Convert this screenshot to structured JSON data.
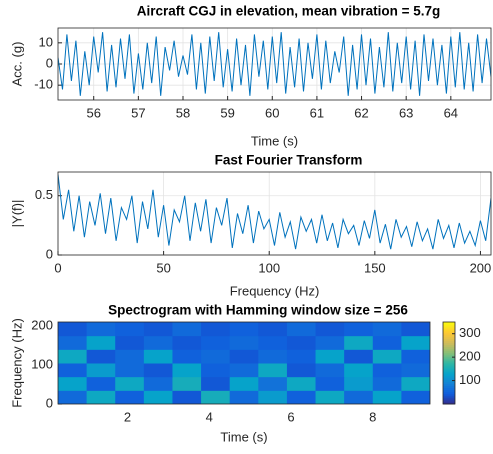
{
  "chart_data": [
    {
      "type": "line",
      "title": "Aircraft CGJ in elevation, mean vibration = 5.7g",
      "xlabel": "Time (s)",
      "ylabel": "Acc. (g)",
      "xlim": [
        55.2,
        64.9
      ],
      "ylim": [
        -17,
        17
      ],
      "xticks": [
        56,
        57,
        58,
        59,
        60,
        61,
        62,
        63,
        64
      ],
      "yticks": [
        -10,
        0,
        10
      ],
      "grid": true,
      "series": [
        {
          "color": "#0072bd",
          "x": [
            55.2,
            55.3,
            55.4,
            55.5,
            55.6,
            55.7,
            55.8,
            55.9,
            56.0,
            56.1,
            56.2,
            56.3,
            56.4,
            56.5,
            56.6,
            56.7,
            56.8,
            56.9,
            57.0,
            57.1,
            57.2,
            57.3,
            57.4,
            57.5,
            57.6,
            57.7,
            57.8,
            57.9,
            58.0,
            58.1,
            58.2,
            58.3,
            58.4,
            58.5,
            58.6,
            58.7,
            58.8,
            58.9,
            59.0,
            59.1,
            59.2,
            59.3,
            59.4,
            59.5,
            59.6,
            59.7,
            59.8,
            59.9,
            60.0,
            60.1,
            60.2,
            60.3,
            60.4,
            60.5,
            60.6,
            60.7,
            60.8,
            60.9,
            61.0,
            61.1,
            61.2,
            61.3,
            61.4,
            61.5,
            61.6,
            61.7,
            61.8,
            61.9,
            62.0,
            62.1,
            62.2,
            62.3,
            62.4,
            62.5,
            62.6,
            62.7,
            62.8,
            62.9,
            63.0,
            63.1,
            63.2,
            63.3,
            63.4,
            63.5,
            63.6,
            63.7,
            63.8,
            63.9,
            64.0,
            64.1,
            64.2,
            64.3,
            64.4,
            64.5,
            64.6,
            64.7,
            64.8,
            64.9
          ],
          "values": [
            3,
            -12,
            14,
            -8,
            11,
            -15,
            6,
            -10,
            13,
            -4,
            15,
            -13,
            9,
            -11,
            12,
            -7,
            14,
            -14,
            5,
            -12,
            10,
            -9,
            13,
            -15,
            8,
            -3,
            11,
            -6,
            4,
            -5,
            14,
            -12,
            10,
            -14,
            13,
            -8,
            15,
            -11,
            7,
            -13,
            12,
            -10,
            9,
            -15,
            14,
            -6,
            11,
            -12,
            13,
            -9,
            15,
            -14,
            8,
            -11,
            12,
            -13,
            10,
            -7,
            14,
            -12,
            11,
            -9,
            6,
            -4,
            13,
            -15,
            9,
            -12,
            14,
            -10,
            12,
            -14,
            8,
            -11,
            15,
            -13,
            10,
            -9,
            13,
            -12,
            11,
            -15,
            14,
            -8,
            12,
            -10,
            9,
            -14,
            13,
            -11,
            15,
            -12,
            10,
            -13,
            14,
            -9,
            12,
            -6
          ]
        }
      ]
    },
    {
      "type": "line",
      "title": "Fast Fourier Transform",
      "xlabel": "Frequency (Hz)",
      "ylabel": "|Y(f)|",
      "xlim": [
        0,
        205
      ],
      "ylim": [
        0,
        0.7
      ],
      "xticks": [
        0,
        50,
        100,
        150,
        200
      ],
      "yticks": [
        0,
        0.5
      ],
      "grid": true,
      "series": [
        {
          "color": "#0072bd",
          "x": [
            0,
            2.5,
            5,
            7.5,
            10,
            12.5,
            15,
            17.5,
            20,
            22.5,
            25,
            27.5,
            30,
            32.5,
            35,
            37.5,
            40,
            42.5,
            45,
            47.5,
            50,
            52.5,
            55,
            57.5,
            60,
            62.5,
            65,
            67.5,
            70,
            72.5,
            75,
            77.5,
            80,
            82.5,
            85,
            87.5,
            90,
            92.5,
            95,
            97.5,
            100,
            102.5,
            105,
            107.5,
            110,
            112.5,
            115,
            117.5,
            120,
            122.5,
            125,
            127.5,
            130,
            132.5,
            135,
            137.5,
            140,
            142.5,
            145,
            147.5,
            150,
            152.5,
            155,
            157.5,
            160,
            162.5,
            165,
            167.5,
            170,
            172.5,
            175,
            177.5,
            180,
            182.5,
            185,
            187.5,
            190,
            192.5,
            195,
            197.5,
            200,
            202.5,
            205
          ],
          "values": [
            0.68,
            0.3,
            0.55,
            0.2,
            0.5,
            0.15,
            0.45,
            0.25,
            0.52,
            0.18,
            0.48,
            0.12,
            0.4,
            0.3,
            0.5,
            0.1,
            0.45,
            0.22,
            0.55,
            0.15,
            0.42,
            0.08,
            0.38,
            0.28,
            0.5,
            0.12,
            0.44,
            0.2,
            0.47,
            0.1,
            0.4,
            0.25,
            0.48,
            0.06,
            0.35,
            0.18,
            0.42,
            0.1,
            0.37,
            0.22,
            0.3,
            0.08,
            0.36,
            0.15,
            0.28,
            0.05,
            0.32,
            0.2,
            0.3,
            0.1,
            0.34,
            0.12,
            0.27,
            0.06,
            0.3,
            0.18,
            0.25,
            0.08,
            0.29,
            0.14,
            0.38,
            0.1,
            0.26,
            0.05,
            0.3,
            0.15,
            0.24,
            0.07,
            0.28,
            0.12,
            0.22,
            0.05,
            0.3,
            0.14,
            0.25,
            0.06,
            0.27,
            0.1,
            0.2,
            0.08,
            0.29,
            0.12,
            0.48
          ]
        }
      ]
    },
    {
      "type": "heatmap",
      "title": "Spectrogram with Hamming window size = 256",
      "xlabel": "Time (s)",
      "ylabel": "Frequency (Hz)",
      "xlim": [
        0.3,
        9.4
      ],
      "ylim": [
        0,
        210
      ],
      "xticks": [
        2,
        4,
        6,
        8
      ],
      "yticks": [
        0,
        100,
        200
      ],
      "x": [
        0.65,
        1.35,
        2.05,
        2.75,
        3.45,
        4.15,
        4.85,
        5.55,
        6.25,
        6.95,
        7.65,
        8.35,
        9.05
      ],
      "y": [
        17.5,
        52.5,
        87.5,
        122.5,
        157.5,
        192.5
      ],
      "z": [
        [
          60,
          140,
          50,
          130,
          40,
          150,
          60,
          120,
          50,
          140,
          60,
          130,
          50
        ],
        [
          130,
          50,
          140,
          60,
          150,
          40,
          130,
          70,
          140,
          50,
          120,
          60,
          140
        ],
        [
          50,
          120,
          60,
          40,
          130,
          50,
          60,
          140,
          40,
          60,
          130,
          50,
          60
        ],
        [
          140,
          40,
          60,
          130,
          50,
          60,
          40,
          60,
          50,
          130,
          40,
          140,
          50
        ],
        [
          60,
          130,
          40,
          60,
          40,
          50,
          60,
          50,
          40,
          60,
          140,
          50,
          130
        ],
        [
          40,
          60,
          50,
          40,
          60,
          40,
          50,
          40,
          60,
          40,
          50,
          60,
          40
        ]
      ],
      "clim": [
        0,
        350
      ],
      "colorbar_ticks": [
        100,
        200,
        300
      ],
      "colormap": [
        "#352a87",
        "#0f5cdd",
        "#1481d6",
        "#06a4ca",
        "#2eb7a4",
        "#87bf77",
        "#d1bb59",
        "#fec832",
        "#f9fb0e"
      ]
    }
  ]
}
